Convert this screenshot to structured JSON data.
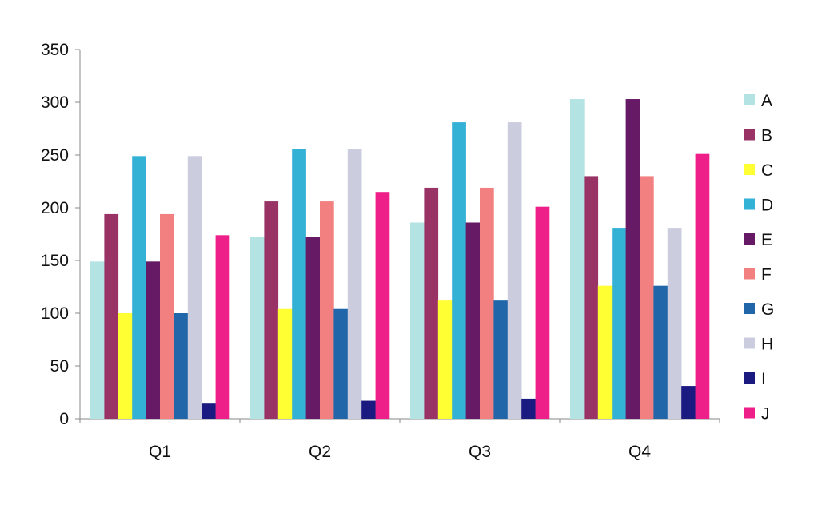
{
  "chart_data": {
    "type": "bar",
    "title": "",
    "xlabel": "",
    "ylabel": "",
    "categories": [
      "Q1",
      "Q2",
      "Q3",
      "Q4"
    ],
    "ylim": [
      0,
      350
    ],
    "yticks": [
      0,
      50,
      100,
      150,
      200,
      250,
      300,
      350
    ],
    "grid": false,
    "legend_position": "right",
    "series": [
      {
        "name": "A",
        "color": "#b3e3e3",
        "values": [
          149,
          172,
          186,
          303
        ]
      },
      {
        "name": "B",
        "color": "#993366",
        "values": [
          194,
          206,
          219,
          230
        ]
      },
      {
        "name": "C",
        "color": "#ffff33",
        "values": [
          100,
          104,
          112,
          126
        ]
      },
      {
        "name": "D",
        "color": "#33b2d6",
        "values": [
          249,
          256,
          281,
          181
        ]
      },
      {
        "name": "E",
        "color": "#661a66",
        "values": [
          149,
          172,
          186,
          303
        ]
      },
      {
        "name": "F",
        "color": "#f28080",
        "values": [
          194,
          206,
          219,
          230
        ]
      },
      {
        "name": "G",
        "color": "#2266aa",
        "values": [
          100,
          104,
          112,
          126
        ]
      },
      {
        "name": "H",
        "color": "#ccccdf",
        "values": [
          249,
          256,
          281,
          181
        ]
      },
      {
        "name": "I",
        "color": "#1a1a80",
        "values": [
          15,
          17,
          19,
          31
        ]
      },
      {
        "name": "J",
        "color": "#ee1f88",
        "values": [
          174,
          215,
          201,
          251
        ]
      }
    ]
  }
}
